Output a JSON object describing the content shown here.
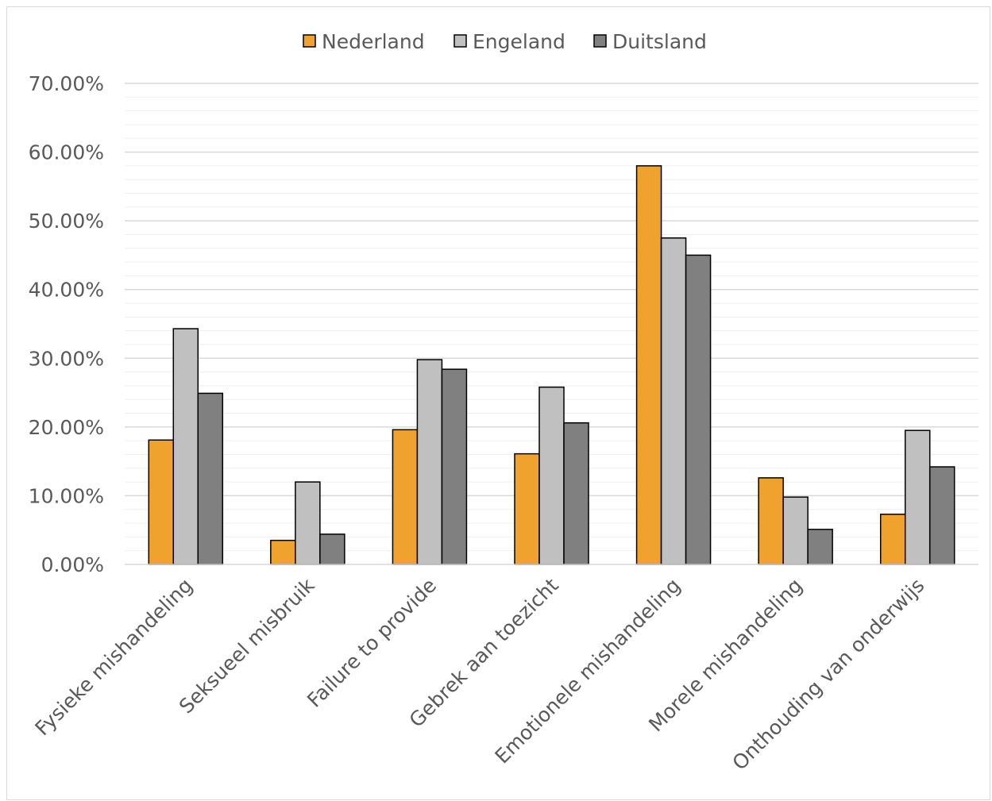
{
  "chart_data": {
    "type": "bar",
    "title": "",
    "xlabel": "",
    "ylabel": "",
    "categories": [
      "Fysieke mishandeling",
      "Seksueel misbruik",
      "Failure to provide",
      "Gebrek aan toezicht",
      "Emotionele mishandeling",
      "Morele mishandeling",
      "Onthouding van onderwijs"
    ],
    "series": [
      {
        "name": "Nederland",
        "color": "#f0a22e",
        "values": [
          18.1,
          3.5,
          19.6,
          16.1,
          58.0,
          12.6,
          7.3
        ]
      },
      {
        "name": "Engeland",
        "color": "#c0c0c0",
        "values": [
          34.3,
          12.0,
          29.8,
          25.8,
          47.5,
          9.8,
          19.5
        ]
      },
      {
        "name": "Duitsland",
        "color": "#808080",
        "values": [
          24.9,
          4.4,
          28.4,
          20.6,
          45.0,
          5.1,
          14.2
        ]
      }
    ],
    "ylim": [
      0,
      70
    ],
    "yticks": [
      "0.00%",
      "10.00%",
      "20.00%",
      "30.00%",
      "40.00%",
      "50.00%",
      "60.00%",
      "70.00%"
    ],
    "grid": true,
    "legend_position": "top-center"
  }
}
